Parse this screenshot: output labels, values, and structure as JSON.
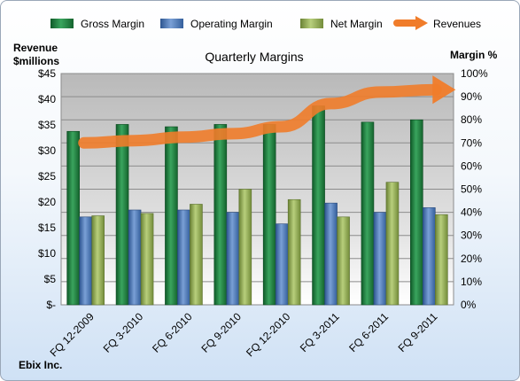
{
  "chart_data": {
    "type": "bar",
    "title": "Quarterly Margins",
    "categories": [
      "FQ 12-2009",
      "FQ 3-2010",
      "FQ 6-2010",
      "FQ 9-2010",
      "FQ 12-2010",
      "FQ 3-2011",
      "FQ 6-2011",
      "FQ 9-2011"
    ],
    "series": [
      {
        "name": "Gross Margin",
        "axis": "right",
        "values": [
          75,
          78,
          77,
          78,
          78,
          86,
          79,
          80
        ],
        "color": "#1e7a3c"
      },
      {
        "name": "Operating Margin",
        "axis": "right",
        "values": [
          38,
          41,
          41,
          40,
          35,
          44,
          40,
          42
        ],
        "color": "#4a74b0"
      },
      {
        "name": "Net Margin",
        "axis": "right",
        "values": [
          38.5,
          39.5,
          43.5,
          50,
          45.5,
          38,
          53,
          39
        ],
        "color": "#8fa84f"
      },
      {
        "name": "Revenues",
        "type": "arrow-trend",
        "axis": "right",
        "values": [
          70,
          71,
          72.5,
          74,
          77,
          87,
          92,
          93
        ],
        "color": "#f07c2a"
      }
    ],
    "left_axis": {
      "label_line1": "Revenue",
      "label_line2": "$millions",
      "ylim": [
        0,
        45
      ],
      "ticks": [
        "$-",
        "$5",
        "$10",
        "$15",
        "$20",
        "$25",
        "$30",
        "$35",
        "$40",
        "$45"
      ]
    },
    "right_axis": {
      "label": "Margin %",
      "ylim": [
        0,
        100
      ],
      "ticks": [
        "0%",
        "10%",
        "20%",
        "30%",
        "40%",
        "50%",
        "60%",
        "70%",
        "80%",
        "90%",
        "100%"
      ]
    },
    "grid": true,
    "legend_position": "top",
    "footer": "Ebix Inc."
  }
}
